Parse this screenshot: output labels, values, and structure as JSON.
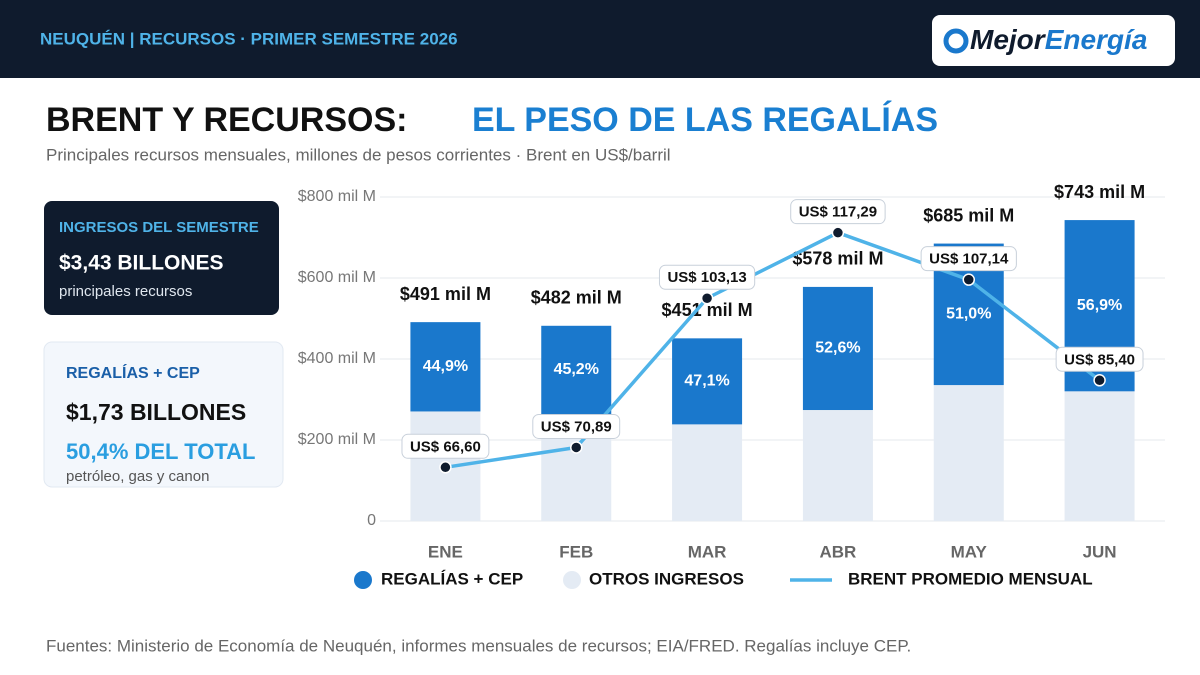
{
  "header": {
    "kicker": "NEUQUÉN | RECURSOS · PRIMER SEMESTRE 2026",
    "logo_part1": "Mejor",
    "logo_part2": "Energía"
  },
  "title": {
    "part1": "BRENT Y RECURSOS:",
    "part2": "EL PESO DE LAS REGALÍAS"
  },
  "subtitle": "Principales recursos mensuales, millones de pesos corrientes · Brent en US$/barril",
  "cards": [
    {
      "label": "INGRESOS DEL SEMESTRE",
      "value": "$3,43 BILLONES",
      "note": "principales recursos"
    },
    {
      "label": "REGALÍAS + CEP",
      "value": "$1,73 BILLONES",
      "share": "50,4% DEL TOTAL",
      "note": "petróleo, gas y canon"
    }
  ],
  "chart_data": {
    "type": "bar",
    "stacked": true,
    "categories": [
      "ENE",
      "FEB",
      "MAR",
      "ABR",
      "MAY",
      "JUN"
    ],
    "series": [
      {
        "name": "REGALÍAS + CEP",
        "color": "#1a78cc",
        "values": [
          220.5,
          217.9,
          212.4,
          304.0,
          349.4,
          422.8
        ],
        "share_labels": [
          "44,9%",
          "45,2%",
          "47,1%",
          "52,6%",
          "51,0%",
          "56,9%"
        ]
      },
      {
        "name": "OTROS INGRESOS",
        "color": "#e4ebf4",
        "values": [
          270.5,
          264.1,
          238.6,
          274.0,
          335.6,
          320.2
        ]
      },
      {
        "name": "BRENT PROMEDIO MENSUAL",
        "type": "line",
        "axis": "y2",
        "color": "#4fb3e8",
        "values": [
          66.6,
          70.89,
          103.13,
          117.29,
          107.14,
          85.4
        ],
        "value_labels": [
          "US$ 66,60",
          "US$ 70,89",
          "US$ 103,13",
          "US$ 117,29",
          "US$ 107,14",
          "US$ 85,40"
        ]
      }
    ],
    "totals": {
      "values": [
        491,
        482,
        451,
        578,
        685,
        743
      ],
      "value_labels": [
        "$491 mil M",
        "$482 mil M",
        "$451 mil M",
        "$578 mil M",
        "$685 mil M",
        "$743 mil M"
      ]
    },
    "ylim": [
      0,
      800
    ],
    "yticks": [
      0,
      {
        "value": 200,
        "label": "$200 mil M"
      },
      {
        "value": 400,
        "label": "$400 mil M"
      },
      {
        "value": 600,
        "label": "$600 mil M"
      },
      {
        "value": 800,
        "label": "$800 mil M"
      }
    ],
    "y2lim": [
      55,
      125
    ],
    "grid": true
  },
  "source": "Fuentes: Ministerio de Economía de Neuquén, informes mensuales de recursos; EIA/FRED. Regalías incluye CEP."
}
